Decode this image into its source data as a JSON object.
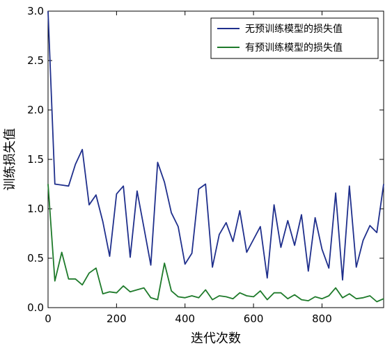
{
  "chart_data": {
    "type": "line",
    "title": "",
    "xlabel": "迭代次数",
    "ylabel": "训练损失值",
    "xlim": [
      0,
      980
    ],
    "ylim": [
      0,
      3.0
    ],
    "xticks": [
      0,
      200,
      400,
      600,
      800
    ],
    "yticks": [
      0.0,
      0.5,
      1.0,
      1.5,
      2.0,
      2.5,
      3.0
    ],
    "xtick_labels": [
      "0",
      "200",
      "400",
      "600",
      "800"
    ],
    "ytick_labels": [
      "0.0",
      "0.5",
      "1.0",
      "1.5",
      "2.0",
      "2.5",
      "3.0"
    ],
    "grid": false,
    "legend_position": "top-right",
    "x": [
      0,
      20,
      40,
      60,
      80,
      100,
      120,
      140,
      160,
      180,
      200,
      220,
      240,
      260,
      280,
      300,
      320,
      340,
      360,
      380,
      400,
      420,
      440,
      460,
      480,
      500,
      520,
      540,
      560,
      580,
      600,
      620,
      640,
      660,
      680,
      700,
      720,
      740,
      760,
      780,
      800,
      820,
      840,
      860,
      880,
      900,
      920,
      940,
      960,
      980
    ],
    "series": [
      {
        "name": "无预训练模型的损失值",
        "color": "#1f2f8c",
        "values": [
          3.0,
          1.25,
          1.24,
          1.23,
          1.45,
          1.6,
          1.04,
          1.14,
          0.87,
          0.52,
          1.15,
          1.23,
          0.51,
          1.18,
          0.81,
          0.43,
          1.47,
          1.27,
          0.96,
          0.82,
          0.44,
          0.55,
          1.2,
          1.25,
          0.41,
          0.74,
          0.86,
          0.67,
          0.98,
          0.56,
          0.69,
          0.82,
          0.3,
          1.04,
          0.61,
          0.88,
          0.63,
          0.94,
          0.37,
          0.91,
          0.59,
          0.4,
          1.16,
          0.28,
          1.23,
          0.41,
          0.68,
          0.83,
          0.76,
          1.25
        ]
      },
      {
        "name": "有预训练模型的损失值",
        "color": "#1e7a2a",
        "values": [
          1.25,
          0.27,
          0.56,
          0.29,
          0.29,
          0.23,
          0.35,
          0.4,
          0.14,
          0.16,
          0.15,
          0.22,
          0.16,
          0.18,
          0.2,
          0.1,
          0.08,
          0.45,
          0.17,
          0.11,
          0.1,
          0.12,
          0.1,
          0.18,
          0.08,
          0.12,
          0.11,
          0.09,
          0.15,
          0.12,
          0.11,
          0.17,
          0.08,
          0.15,
          0.15,
          0.09,
          0.13,
          0.08,
          0.07,
          0.11,
          0.09,
          0.12,
          0.2,
          0.1,
          0.14,
          0.09,
          0.1,
          0.12,
          0.06,
          0.09
        ]
      }
    ]
  }
}
